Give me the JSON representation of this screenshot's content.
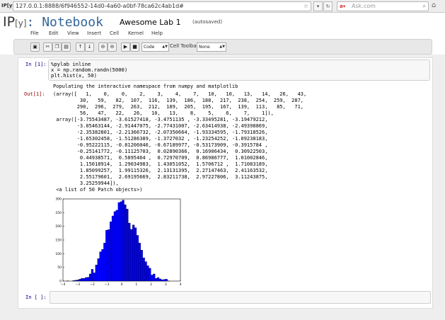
{
  "browser": {
    "url": "127.0.0.1:8888/6f946552-14d0-4a60-a0bf-78ca62c4ab1d#",
    "search_placeholder": "Ask.com",
    "favicon": "IP[y]"
  },
  "header": {
    "logo_ip": "IP",
    "logo_y": "[y]",
    "logo_notebook": ": Notebook",
    "title": "Awesome Lab 1",
    "status": "(autosaved)"
  },
  "menu": [
    "File",
    "Edit",
    "View",
    "Insert",
    "Cell",
    "Kernel",
    "Help"
  ],
  "toolbar": {
    "buttons": [
      "save-icon",
      "cut-icon",
      "copy-icon",
      "paste-icon",
      "move-up-icon",
      "move-down-icon",
      "insert-above-icon",
      "insert-below-icon",
      "run-icon",
      "stop-icon"
    ],
    "cell_type": "Code",
    "cell_toolbar_label": "Cell Toolbar:",
    "cell_toolbar_value": "None"
  },
  "cells": {
    "cell1": {
      "prompt": "In [1]:",
      "code": [
        "%pylab inline",
        "x = np.random.randn(5000)",
        "plt.hist(x, 50)"
      ],
      "stdout": "Populating the interactive namespace from numpy and matplotlib",
      "out_prompt": "Out[1]:",
      "output_lines": [
        "(array([   1,    0,    0,    2,    3,    4,    7,   10,   10,   13,   14,   26,   43,",
        "         30,   59,   82,  107,  116,  139,  186,  188,  217,  238,  254,  259,  287,",
        "        290,  296,  279,  263,  212,  189,  205,  195,  167,  139,  113,   85,   71,",
        "         56,   47,   22,   26,   10,   13,    8,    5,    6,    7,    1]),",
        " array([-3.75543487, -3.61527418, -3.4751135 , -3.33495281, -3.19479212,",
        "        -3.05463144, -2.91447075, -2.77431007, -2.63414938, -2.49398869,",
        "        -2.35382801, -2.21366732, -2.07350664, -1.93334595, -1.79318526,",
        "        -1.65302458, -1.51286389, -1.3727032 , -1.23254252, -1.09238183,",
        "        -0.95222115, -0.81206046, -0.67189977, -0.53173909, -0.3915784 ,",
        "        -0.25141772, -0.11125703,  0.02890366,  0.16906434,  0.30922503,",
        "         0.44938571,  0.5895464 ,  0.72970709,  0.86986777,  1.01002846,",
        "         1.15018914,  1.29034983,  1.43051052,  1.5706712 ,  1.71083189,",
        "         1.85099257,  1.99115326,  2.13131395,  2.27147463,  2.41163532,",
        "         2.55179601,  2.69195669,  2.83211738,  2.97227806,  3.11243875,",
        "         3.25259944]),",
        " <a list of 50 Patch objects>)"
      ]
    },
    "cell2": {
      "prompt": "In [ ]:"
    }
  },
  "chart_data": {
    "type": "bar",
    "values": [
      1,
      0,
      0,
      2,
      3,
      4,
      7,
      10,
      10,
      13,
      14,
      26,
      43,
      30,
      59,
      82,
      107,
      116,
      139,
      186,
      188,
      217,
      238,
      254,
      259,
      287,
      290,
      296,
      279,
      263,
      212,
      189,
      205,
      195,
      167,
      139,
      113,
      85,
      71,
      56,
      47,
      22,
      26,
      10,
      13,
      8,
      5,
      6,
      7,
      1
    ],
    "bin_start": -3.75543487,
    "bin_end": 3.25259944,
    "xlim": [
      -4,
      4
    ],
    "ylim": [
      0,
      300
    ],
    "xticks": [
      "−4",
      "−3",
      "−2",
      "−1",
      "0",
      "1",
      "2",
      "3",
      "4"
    ],
    "yticks": [
      "0",
      "50",
      "100",
      "150",
      "200",
      "250",
      "300"
    ],
    "bar_color": "#0000ff",
    "bar_edge": "#000000"
  }
}
